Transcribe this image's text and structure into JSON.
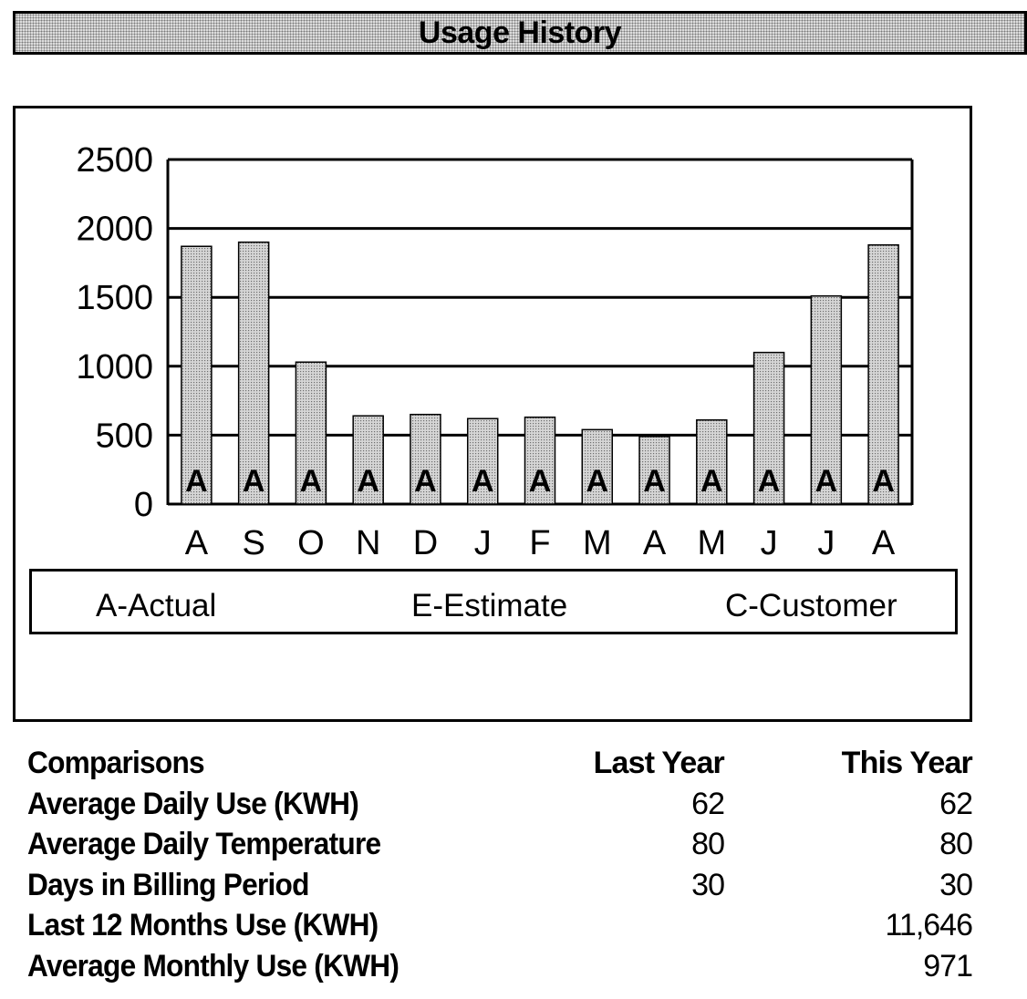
{
  "header": {
    "title": "Usage History"
  },
  "chart_data": {
    "type": "bar",
    "categories": [
      "A",
      "S",
      "O",
      "N",
      "D",
      "J",
      "F",
      "M",
      "A",
      "M",
      "J",
      "J",
      "A"
    ],
    "values": [
      1870,
      1900,
      1030,
      640,
      650,
      620,
      630,
      540,
      490,
      610,
      1100,
      1510,
      1880
    ],
    "bar_labels": [
      "A",
      "A",
      "A",
      "A",
      "A",
      "A",
      "A",
      "A",
      "A",
      "A",
      "A",
      "A",
      "A"
    ],
    "ylim": [
      0,
      2500
    ],
    "yticks": [
      0,
      500,
      1000,
      1500,
      2000,
      2500
    ],
    "grid": true,
    "xlabel": "",
    "ylabel": "",
    "legend": [
      "A-Actual",
      "E-Estimate",
      "C-Customer"
    ],
    "bar_color": "#c8c8c8"
  },
  "comparisons": {
    "title": "Comparisons",
    "col_last": "Last Year",
    "col_this": "This Year",
    "rows": [
      {
        "label": "Average Daily Use (KWH)",
        "last": "62",
        "this": "62"
      },
      {
        "label": "Average Daily Temperature",
        "last": "80",
        "this": "80"
      },
      {
        "label": "Days in Billing Period",
        "last": "30",
        "this": "30"
      },
      {
        "label": "Last 12 Months Use (KWH)",
        "last": "",
        "this": "11,646"
      },
      {
        "label": "Average Monthly Use (KWH)",
        "last": "",
        "this": "971"
      }
    ]
  }
}
